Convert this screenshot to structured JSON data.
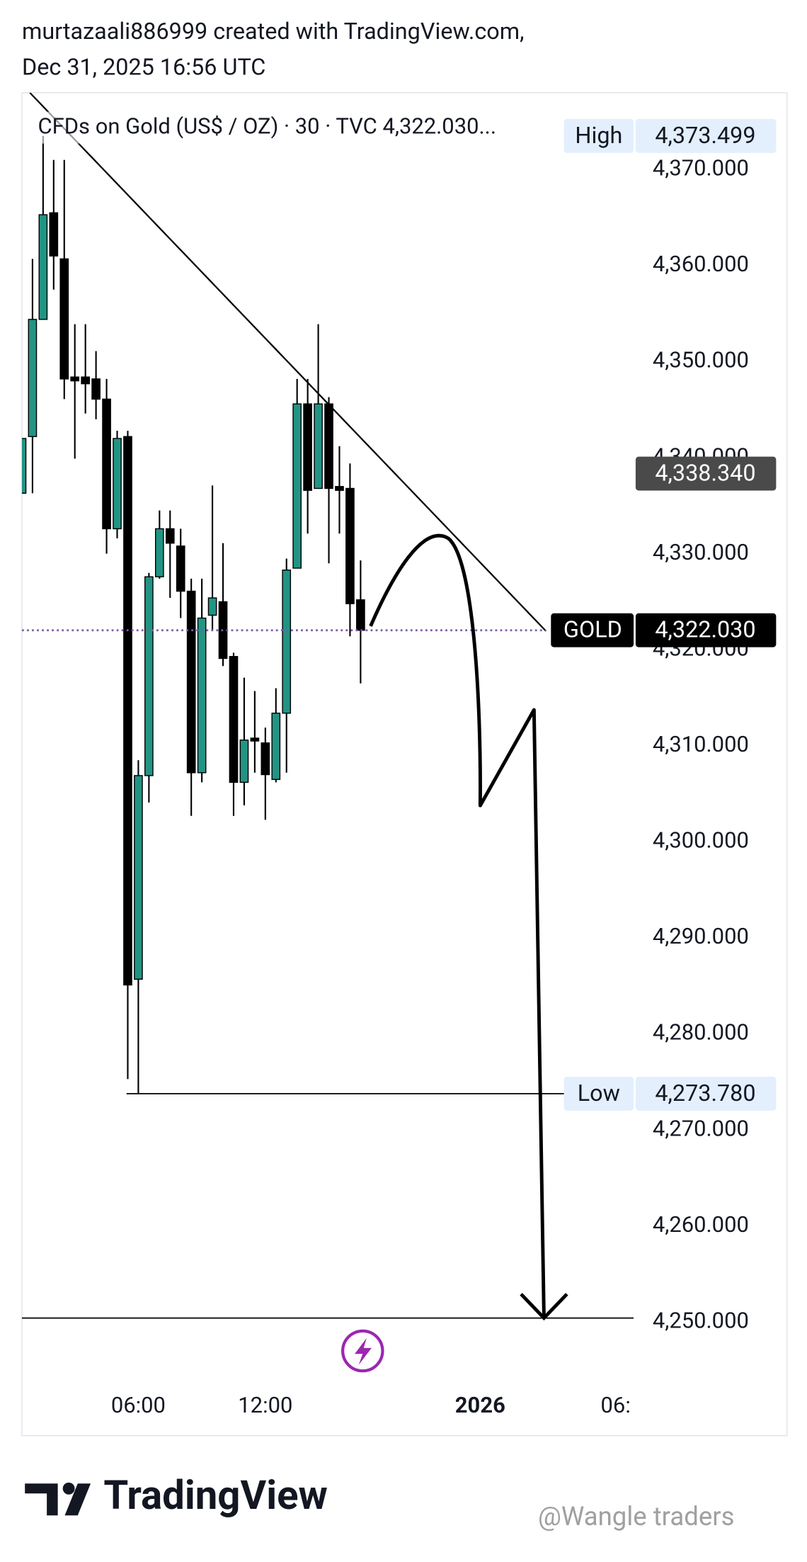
{
  "header": {
    "author": "murtazaali886999 created with TradingView.com,",
    "date": "Dec 31, 2025 16:56 UTC"
  },
  "chart_data": {
    "type": "candlestick",
    "title": "CFDs on Gold (US$ / OZ) · 30 · TVC  4,322.030...",
    "up_color": "#229484",
    "down_color": "#000000",
    "candles": [
      [
        4336.3,
        4342.0,
        4336.3,
        4342.0
      ],
      [
        4342.2,
        4360.7,
        4336.3,
        4354.4
      ],
      [
        4354.4,
        4373.5,
        4354.4,
        4365.3
      ],
      [
        4365.5,
        4371.0,
        4357.5,
        4361.0
      ],
      [
        4360.7,
        4371.0,
        4346.1,
        4348.2
      ],
      [
        4348.4,
        4353.9,
        4339.9,
        4348.0
      ],
      [
        4348.4,
        4353.9,
        4344.6,
        4347.7
      ],
      [
        4348.2,
        4351.1,
        4344.0,
        4346.1
      ],
      [
        4346.1,
        4348.2,
        4330.0,
        4332.6
      ],
      [
        4332.6,
        4342.8,
        4331.6,
        4342.0
      ],
      [
        4342.2,
        4342.8,
        4275.3,
        4285.1
      ],
      [
        4285.7,
        4308.5,
        4273.8,
        4306.9
      ],
      [
        4306.9,
        4328.0,
        4304.1,
        4327.6
      ],
      [
        4327.6,
        4334.5,
        4327.4,
        4332.6
      ],
      [
        4332.6,
        4334.5,
        4325.4,
        4331.1
      ],
      [
        4330.8,
        4332.6,
        4323.3,
        4326.1
      ],
      [
        4326.1,
        4327.4,
        4302.7,
        4307.2
      ],
      [
        4307.2,
        4327.4,
        4306.2,
        4323.3
      ],
      [
        4323.6,
        4337.1,
        4322.0,
        4325.4
      ],
      [
        4325.0,
        4331.1,
        4318.3,
        4319.1
      ],
      [
        4319.3,
        4319.7,
        4302.7,
        4306.2
      ],
      [
        4306.2,
        4317.1,
        4303.8,
        4310.6
      ],
      [
        4310.8,
        4315.7,
        4307.2,
        4310.5
      ],
      [
        4310.3,
        4311.9,
        4302.3,
        4307.0
      ],
      [
        4306.5,
        4316.0,
        4306.2,
        4313.4
      ],
      [
        4313.4,
        4329.5,
        4307.2,
        4328.3
      ],
      [
        4328.5,
        4348.2,
        4328.5,
        4345.6
      ],
      [
        4345.6,
        4348.2,
        4332.1,
        4336.6
      ],
      [
        4336.8,
        4353.9,
        4336.8,
        4345.6
      ],
      [
        4345.6,
        4346.3,
        4329.0,
        4336.8
      ],
      [
        4337.0,
        4341.2,
        4332.1,
        4336.6
      ],
      [
        4336.8,
        4339.4,
        4321.4,
        4324.8
      ],
      [
        4325.2,
        4329.3,
        4316.5,
        4322.03
      ]
    ],
    "xlim": [
      0,
      57.8
    ],
    "xticks": [
      {
        "value": 11,
        "label": "06:00"
      },
      {
        "value": 23,
        "label": "12:00"
      },
      {
        "value": 43.3,
        "label": "2026"
      },
      {
        "value": 56.1,
        "label": "06:"
      }
    ],
    "ylim": [
      4244.4,
      4378.0
    ],
    "yticks": [
      {
        "value": 4250,
        "label": "4,250.000"
      },
      {
        "value": 4260,
        "label": "4,260.000"
      },
      {
        "value": 4270,
        "label": "4,270.000"
      },
      {
        "value": 4280,
        "label": "4,280.000"
      },
      {
        "value": 4290,
        "label": "4,290.000"
      },
      {
        "value": 4300,
        "label": "4,300.000"
      },
      {
        "value": 4310,
        "label": "4,310.000"
      },
      {
        "value": 4320,
        "label": "4,320.000"
      },
      {
        "value": 4330,
        "label": "4,330.000"
      },
      {
        "value": 4340,
        "label": "4,340.000"
      },
      {
        "value": 4350,
        "label": "4,350.000"
      },
      {
        "value": 4360,
        "label": "4,360.000"
      },
      {
        "value": 4370,
        "label": "4,370.000"
      }
    ],
    "markers": {
      "labels": [
        "High",
        "Low",
        "GOLD",
        null
      ],
      "values": [
        4373.499,
        4273.78,
        4322.03,
        4338.34
      ],
      "value_labels": [
        "4,373.499",
        "4,273.780",
        "4,322.030",
        "4,338.340"
      ],
      "colors": [
        "#e3effd",
        "#e3effd",
        "#000000",
        "#4a4a4a"
      ]
    }
  },
  "footer": {
    "brand": "TradingView",
    "watermark": "@Wangle traders"
  }
}
